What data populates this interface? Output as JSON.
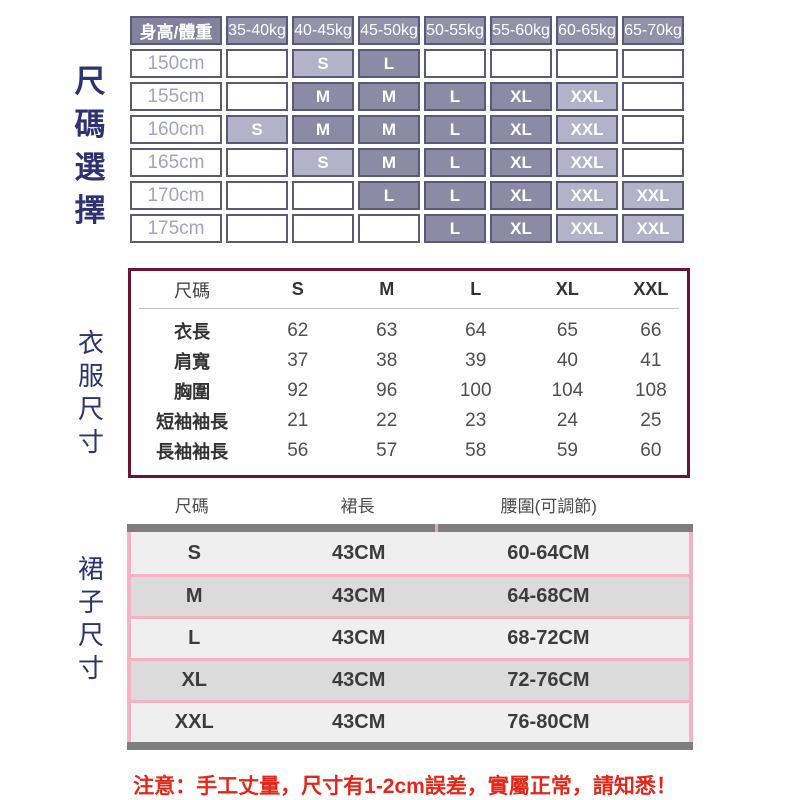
{
  "sections": {
    "size_selection": "尺碼選擇",
    "clothes": "衣服尺寸",
    "skirt": "裙子尺寸",
    "label_color": "#2c3272"
  },
  "size_matrix": {
    "corner_label": "身高/體重",
    "weight_columns": [
      "35-40kg",
      "40-45kg",
      "45-50kg",
      "50-55kg",
      "55-60kg",
      "60-65kg",
      "65-70kg"
    ],
    "rows": [
      {
        "height": "150cm",
        "cells": [
          null,
          {
            "size": "S",
            "shade": "light"
          },
          {
            "size": "L",
            "shade": "dark"
          },
          null,
          null,
          null,
          null
        ]
      },
      {
        "height": "155cm",
        "cells": [
          null,
          {
            "size": "M",
            "shade": "dark"
          },
          {
            "size": "M",
            "shade": "dark"
          },
          {
            "size": "L",
            "shade": "dark"
          },
          {
            "size": "XL",
            "shade": "dark"
          },
          {
            "size": "XXL",
            "shade": "light"
          },
          null
        ]
      },
      {
        "height": "160cm",
        "cells": [
          {
            "size": "S",
            "shade": "light"
          },
          {
            "size": "M",
            "shade": "dark"
          },
          {
            "size": "M",
            "shade": "dark"
          },
          {
            "size": "L",
            "shade": "dark"
          },
          {
            "size": "XL",
            "shade": "dark"
          },
          {
            "size": "XXL",
            "shade": "light"
          },
          null
        ]
      },
      {
        "height": "165cm",
        "cells": [
          null,
          {
            "size": "S",
            "shade": "light"
          },
          {
            "size": "M",
            "shade": "dark"
          },
          {
            "size": "L",
            "shade": "dark"
          },
          {
            "size": "XL",
            "shade": "dark"
          },
          {
            "size": "XXL",
            "shade": "light"
          },
          null
        ]
      },
      {
        "height": "170cm",
        "cells": [
          null,
          null,
          {
            "size": "L",
            "shade": "dark"
          },
          {
            "size": "L",
            "shade": "dark"
          },
          {
            "size": "XL",
            "shade": "dark"
          },
          {
            "size": "XXL",
            "shade": "light"
          },
          {
            "size": "XXL",
            "shade": "light"
          }
        ]
      },
      {
        "height": "175cm",
        "cells": [
          null,
          null,
          null,
          {
            "size": "L",
            "shade": "dark"
          },
          {
            "size": "XL",
            "shade": "dark"
          },
          {
            "size": "XXL",
            "shade": "light"
          },
          {
            "size": "XXL",
            "shade": "light"
          }
        ]
      }
    ],
    "colors": {
      "header_bg": "#9191aa",
      "corner_bg": "#83839d",
      "dark_cell": "#8b8ba6",
      "light_cell": "#b2b2c9",
      "border": "#5a5a78"
    }
  },
  "clothes_table": {
    "border_color": "#6d1232",
    "header": [
      "尺碼",
      "S",
      "M",
      "L",
      "XL",
      "XXL"
    ],
    "rows": [
      {
        "label": "衣長",
        "values": [
          "62",
          "63",
          "64",
          "65",
          "66"
        ]
      },
      {
        "label": "肩寬",
        "values": [
          "37",
          "38",
          "39",
          "40",
          "41"
        ]
      },
      {
        "label": "胸圍",
        "values": [
          "92",
          "96",
          "100",
          "104",
          "108"
        ]
      },
      {
        "label": "短袖袖長",
        "values": [
          "21",
          "22",
          "23",
          "24",
          "25"
        ]
      },
      {
        "label": "長袖袖長",
        "values": [
          "56",
          "57",
          "58",
          "59",
          "60"
        ]
      }
    ]
  },
  "skirt_table": {
    "header": [
      "尺碼",
      "裙長",
      "腰圍(可調節)"
    ],
    "rows": [
      {
        "size": "S",
        "length": "43CM",
        "waist": "60-64CM"
      },
      {
        "size": "M",
        "length": "43CM",
        "waist": "64-68CM"
      },
      {
        "size": "L",
        "length": "43CM",
        "waist": "68-72CM"
      },
      {
        "size": "XL",
        "length": "43CM",
        "waist": "72-76CM"
      },
      {
        "size": "XXL",
        "length": "43CM",
        "waist": "76-80CM"
      }
    ],
    "colors": {
      "accent_pink": "#f3b3c3",
      "row_light": "#efefef",
      "row_dark": "#dbdbdb",
      "bar_gray": "#7e7e7e"
    }
  },
  "note": {
    "text": "注意：手工丈量，尺寸有1-2cm誤差，實屬正常，請知悉！",
    "color": "#e5261a"
  }
}
